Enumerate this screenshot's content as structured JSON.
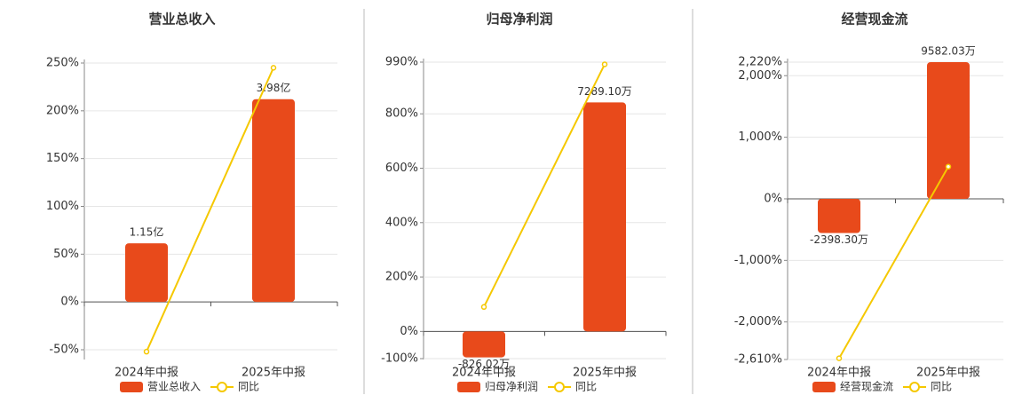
{
  "chart_data": [
    {
      "type": "bar-line",
      "title": "营业总收入",
      "categories": [
        "2024年中报",
        "2025年中报"
      ],
      "series": [
        {
          "name": "营业总收入",
          "color": "#e84a1b",
          "axis": "y2",
          "values": [
            1.15,
            3.98
          ],
          "value_labels": [
            "1.15亿",
            "3.98亿"
          ]
        },
        {
          "name": "同比",
          "color": "#f5c800",
          "axis": "y",
          "values": [
            -52,
            245
          ]
        }
      ],
      "ylim": [
        -50,
        250
      ],
      "yticks": [
        {
          "value": -50,
          "label": "-50%"
        },
        {
          "value": 0,
          "label": "0%"
        },
        {
          "value": 50,
          "label": "50%"
        },
        {
          "value": 100,
          "label": "100%"
        },
        {
          "value": 150,
          "label": "150%"
        },
        {
          "value": 200,
          "label": "200%"
        },
        {
          "value": 250,
          "label": "250%"
        }
      ],
      "y2lim": [
        -0.94,
        4.69
      ],
      "grid": true
    },
    {
      "type": "bar-line",
      "title": "归母净利润",
      "categories": [
        "2024年中报",
        "2025年中报"
      ],
      "series": [
        {
          "name": "归母净利润",
          "color": "#e84a1b",
          "axis": "y2",
          "values": [
            -826.02,
            7289.1
          ],
          "value_labels": [
            "-826.02万",
            "7289.10万"
          ]
        },
        {
          "name": "同比",
          "color": "#f5c800",
          "axis": "y",
          "values": [
            90,
            982
          ]
        }
      ],
      "ylim": [
        -100,
        990
      ],
      "yticks": [
        {
          "value": -100,
          "label": "-100%"
        },
        {
          "value": 0,
          "label": "0%"
        },
        {
          "value": 200,
          "label": "200%"
        },
        {
          "value": 400,
          "label": "400%"
        },
        {
          "value": 600,
          "label": "600%"
        },
        {
          "value": 800,
          "label": "800%"
        },
        {
          "value": 990,
          "label": "990%"
        }
      ],
      "y2lim": [
        -866,
        8571
      ],
      "grid": true
    },
    {
      "type": "bar-line",
      "title": "经营现金流",
      "categories": [
        "2024年中报",
        "2025年中报"
      ],
      "series": [
        {
          "name": "经营现金流",
          "color": "#e84a1b",
          "axis": "y2",
          "values": [
            -2398.3,
            9582.03
          ],
          "value_labels": [
            "-2398.30万",
            "9582.03万"
          ]
        },
        {
          "name": "同比",
          "color": "#f5c800",
          "axis": "y",
          "values": [
            -2590,
            522
          ]
        }
      ],
      "ylim": [
        -2610,
        2220
      ],
      "yticks": [
        {
          "value": -2610,
          "label": "-2,610%"
        },
        {
          "value": -2000,
          "label": "-2,000%"
        },
        {
          "value": -1000,
          "label": "-1,000%"
        },
        {
          "value": 0,
          "label": "0%"
        },
        {
          "value": 1000,
          "label": "1,000%"
        },
        {
          "value": 2000,
          "label": "2,000%"
        },
        {
          "value": 2220,
          "label": "2,220%"
        }
      ],
      "y2lim": [
        -11265,
        9582
      ],
      "grid": true
    }
  ]
}
